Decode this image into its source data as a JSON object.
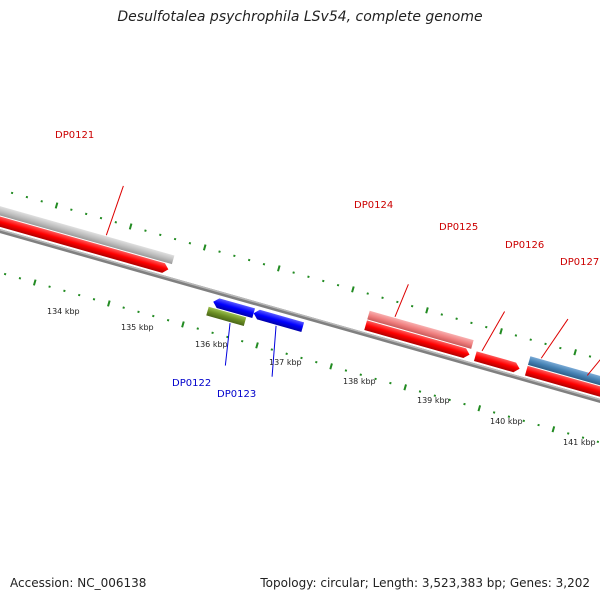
{
  "title": "Desulfotalea psychrophila LSv54, complete genome",
  "footer": {
    "accession": "Accession: NC_006138",
    "summary": "Topology: circular; Length: 3,523,383 bp; Genes: 3,202"
  },
  "colors": {
    "forward_cds": "#ff0000",
    "forward_gene_light": "#f08080",
    "forward_gene_grey": "#c0c0c0",
    "forward_gene_steel": "#4682b4",
    "forward_gene_cyan": "#00ffff",
    "reverse_cds": "#0000ff",
    "reverse_gene": "#6b8e23",
    "label_forward": "#cc0000",
    "label_reverse": "#0000cc",
    "backbone": "#808080",
    "ticks": "#228b22"
  },
  "scale_labels": [
    "134 kbp",
    "135 kbp",
    "136 kbp",
    "137 kbp",
    "138 kbp",
    "139 kbp",
    "140 kbp",
    "141 kbp"
  ],
  "gene_labels": {
    "forward": [
      "DP0121",
      "DP0124",
      "DP0125",
      "DP0126",
      "DP0127"
    ],
    "reverse": [
      "DP0122",
      "DP0123"
    ]
  }
}
